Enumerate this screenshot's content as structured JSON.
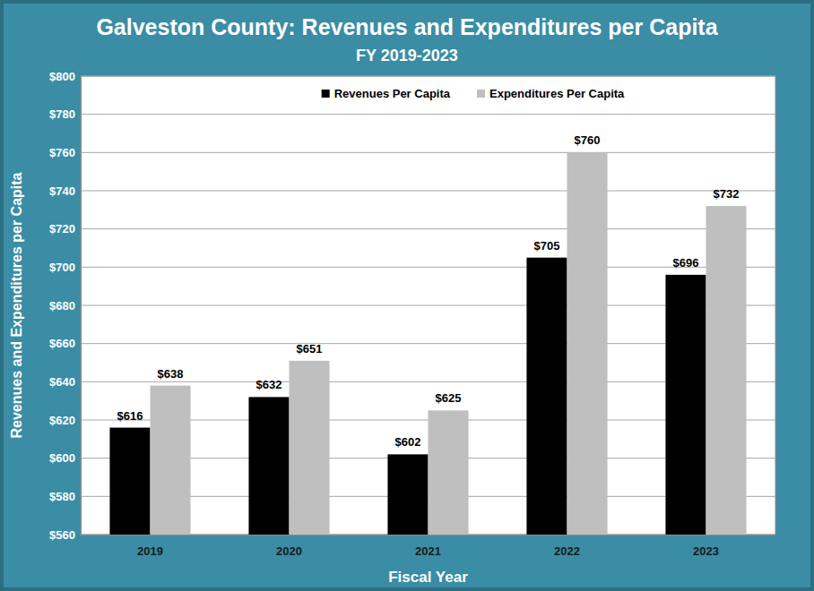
{
  "chart_data": {
    "type": "bar",
    "title": "Galveston County: Revenues and Expenditures per Capita",
    "subtitle": "FY 2019-2023",
    "x_label": "Fiscal Year",
    "y_label": "Revenues and Expenditures per Capita",
    "categories": [
      "2019",
      "2020",
      "2021",
      "2022",
      "2023"
    ],
    "series": [
      {
        "name": "Revenues Per Capita",
        "color": "#000000",
        "values": [
          616,
          632,
          602,
          705,
          696
        ],
        "value_labels": [
          "$616",
          "$632",
          "$602",
          "$705",
          "$696"
        ]
      },
      {
        "name": "Expenditures Per Capita",
        "color": "#bfbfbf",
        "values": [
          638,
          651,
          625,
          760,
          732
        ],
        "value_labels": [
          "$638",
          "$651",
          "$625",
          "$760",
          "$732"
        ]
      }
    ],
    "ylim": [
      560,
      800
    ],
    "yticks": [
      {
        "value": 560,
        "label": "$560"
      },
      {
        "value": 580,
        "label": "$580"
      },
      {
        "value": 600,
        "label": "$600"
      },
      {
        "value": 620,
        "label": "$620"
      },
      {
        "value": 640,
        "label": "$640"
      },
      {
        "value": 660,
        "label": "$660"
      },
      {
        "value": 680,
        "label": "$680"
      },
      {
        "value": 700,
        "label": "$700"
      },
      {
        "value": 720,
        "label": "$720"
      },
      {
        "value": 740,
        "label": "$740"
      },
      {
        "value": 760,
        "label": "$760"
      },
      {
        "value": 780,
        "label": "$780"
      },
      {
        "value": 800,
        "label": "$800"
      }
    ],
    "grid": true,
    "legend": "top",
    "data_labels": true
  }
}
